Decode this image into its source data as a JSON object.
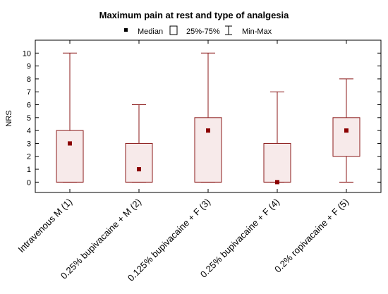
{
  "chart_data": {
    "type": "box",
    "title": "Maximum pain at rest and type of analgesia",
    "xlabel": "",
    "ylabel": "NRS",
    "ylim": [
      -0.8,
      11
    ],
    "yticks": [
      0,
      1,
      2,
      3,
      4,
      5,
      6,
      7,
      8,
      9,
      10
    ],
    "grid": false,
    "legend": {
      "position": "top",
      "items": [
        {
          "symbol": "median",
          "label": "Median"
        },
        {
          "symbol": "box",
          "label": "25%-75%"
        },
        {
          "symbol": "whisker",
          "label": "Min-Max"
        }
      ]
    },
    "categories": [
      "Intravenous M (1)",
      "0.25% bupivacaine + M (2)",
      "0.125% bupivacaine + F (3)",
      "0.25% bupivacaine + F (4)",
      "0.2% ropivacaine + F (5)"
    ],
    "series": [
      {
        "median": [
          3,
          1,
          4,
          0,
          4
        ],
        "q1": [
          0,
          0,
          0,
          0,
          2
        ],
        "q3": [
          4,
          3,
          5,
          3,
          5
        ],
        "min": [
          0,
          0,
          0,
          0,
          0
        ],
        "max": [
          10,
          6,
          10,
          7,
          8
        ]
      }
    ],
    "colors": {
      "box_fill": "#f7eaea",
      "box_stroke": "#8b1a1a",
      "median_marker": "#8b0000",
      "axis": "#000000",
      "legend_marker": "#000000"
    }
  }
}
